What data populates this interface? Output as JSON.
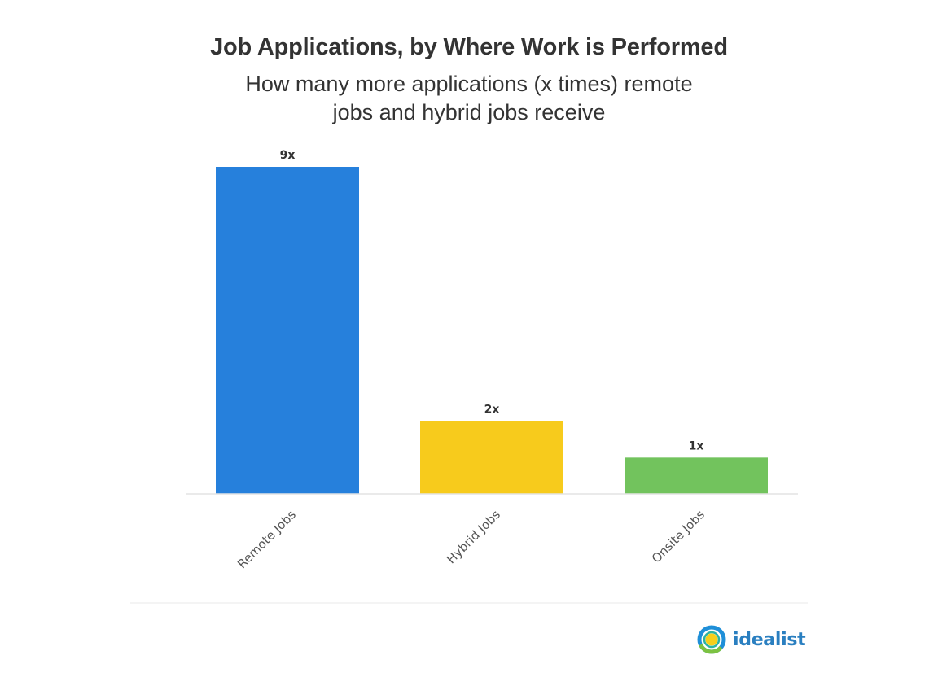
{
  "brand": {
    "name": "idealist",
    "logo_colors": [
      "#1f8fd8",
      "#7cc242",
      "#f6cf1c",
      "#2bb3a3"
    ]
  },
  "chart_data": {
    "type": "bar",
    "title": "Job Applications, by Where Work is Performed",
    "subtitle": "How many more applications (x times) remote jobs and hybrid jobs receive",
    "categories": [
      "Remote Jobs",
      "Hybrid Jobs",
      "Onsite Jobs"
    ],
    "values": [
      9,
      2,
      1
    ],
    "value_labels": [
      "9x",
      "2x",
      "1x"
    ],
    "colors": [
      "#2680dc",
      "#f7cb1c",
      "#72c35d"
    ],
    "xlabel": "",
    "ylabel": "",
    "ylim": [
      0,
      9
    ],
    "grid": false,
    "legend": "none"
  }
}
